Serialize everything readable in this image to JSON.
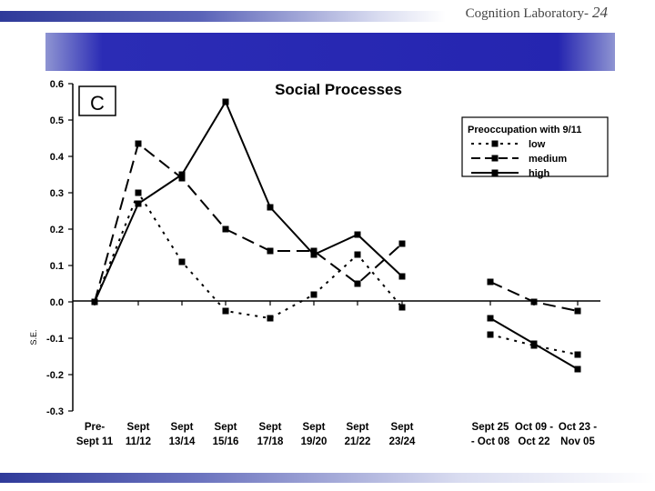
{
  "slide": {
    "header_text": "Cognition Laboratory-",
    "page_number": "24"
  },
  "chart_data": {
    "type": "line",
    "title": "Social Processes",
    "panel_label": "C",
    "ylabel": "S.E.",
    "xlabel": "",
    "ylim": [
      -0.3,
      0.6
    ],
    "yticks": [
      "0.6",
      "0.5",
      "0.4",
      "0.3",
      "0.2",
      "0.1",
      "0.0",
      "-0.1",
      "-0.2",
      "-0.3"
    ],
    "categories": [
      [
        "Pre-",
        "Sept 11"
      ],
      [
        "Sept",
        "11/12"
      ],
      [
        "Sept",
        "13/14"
      ],
      [
        "Sept",
        "15/16"
      ],
      [
        "Sept",
        "17/18"
      ],
      [
        "Sept",
        "19/20"
      ],
      [
        "Sept",
        "21/22"
      ],
      [
        "Sept",
        "23/24"
      ],
      [
        "Sept 25",
        "- Oct 08"
      ],
      [
        "Oct 09 -",
        "Oct 22"
      ],
      [
        "Oct 23 -",
        "Nov 05"
      ]
    ],
    "legend": {
      "title": "Preoccupation with 9/11",
      "position": "top-right"
    },
    "series": [
      {
        "name": "low",
        "style": "dotted",
        "values": [
          0.0,
          0.3,
          0.11,
          -0.025,
          -0.045,
          0.02,
          0.13,
          -0.015,
          -0.09,
          -0.12,
          -0.145
        ]
      },
      {
        "name": "medium",
        "style": "dashed",
        "values": [
          0.0,
          0.435,
          0.34,
          0.2,
          0.14,
          0.14,
          0.05,
          0.16,
          0.055,
          0.0,
          -0.025
        ]
      },
      {
        "name": "high",
        "style": "solid",
        "values": [
          0.0,
          0.27,
          0.35,
          0.55,
          0.26,
          0.13,
          0.185,
          0.07,
          -0.045,
          -0.115,
          -0.185
        ]
      }
    ],
    "segment_break_after_index": 7
  }
}
